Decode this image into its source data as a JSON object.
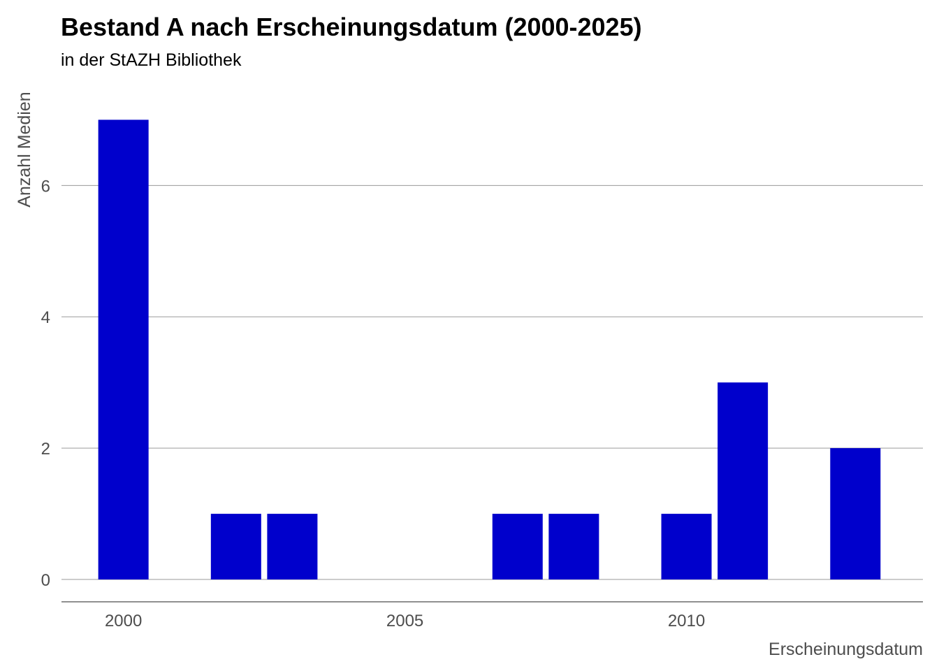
{
  "chart_data": {
    "type": "bar",
    "title": "Bestand A nach Erscheinungsdatum (2000-2025)",
    "subtitle": "in der StAZH Bibliothek",
    "xlabel": "Erscheinungsdatum",
    "ylabel": "Anzahl Medien",
    "x": [
      2000,
      2002,
      2003,
      2007,
      2008,
      2010,
      2011,
      2013
    ],
    "values": [
      7,
      1,
      1,
      1,
      1,
      1,
      3,
      2
    ],
    "xlim": [
      1998.9,
      2014.2
    ],
    "ylim": [
      -0.34,
      7.6
    ],
    "xticks": [
      2000,
      2005,
      2010
    ],
    "yticks": [
      0,
      2,
      4,
      6
    ],
    "grid": "horizontal",
    "bar_color": "#0000CC"
  }
}
